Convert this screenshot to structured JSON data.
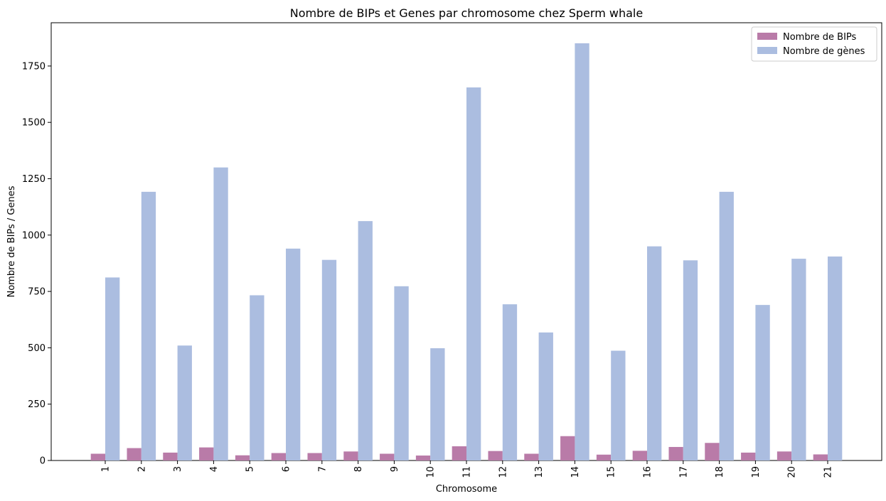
{
  "chart_data": {
    "type": "bar",
    "title": "Nombre de BIPs et Genes par chromosome chez Sperm whale",
    "xlabel": "Chromosome",
    "ylabel": "Nombre de BIPs / Genes",
    "categories": [
      "1",
      "2",
      "3",
      "4",
      "5",
      "6",
      "7",
      "8",
      "9",
      "10",
      "11",
      "12",
      "13",
      "14",
      "15",
      "16",
      "17",
      "18",
      "19",
      "20",
      "21"
    ],
    "series": [
      {
        "name": "Nombre de BIPs",
        "color": "#b97ba8",
        "values": [
          30,
          55,
          35,
          58,
          23,
          33,
          33,
          40,
          30,
          22,
          63,
          42,
          30,
          108,
          26,
          43,
          60,
          78,
          35,
          40,
          27
        ]
      },
      {
        "name": "Nombre de gènes",
        "color": "#abbde0",
        "values": [
          812,
          1192,
          510,
          1300,
          733,
          940,
          890,
          1062,
          773,
          498,
          1655,
          693,
          568,
          1851,
          487,
          950,
          888,
          1192,
          690,
          895,
          905
        ]
      }
    ],
    "ylim": [
      0,
      1942
    ],
    "yticks": [
      0,
      250,
      500,
      750,
      1000,
      1250,
      1500,
      1750
    ],
    "legend_position": "top-right",
    "grid": false
  }
}
